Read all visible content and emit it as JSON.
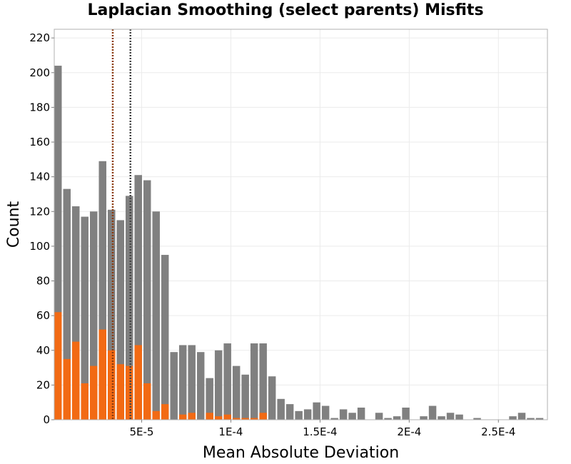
{
  "chart_data": {
    "type": "bar",
    "title": "Laplacian Smoothing (select parents) Misfits",
    "xlabel": "Mean Absolute Deviation",
    "ylabel": "Count",
    "xlim": [
      1e-06,
      0.0002775
    ],
    "ylim": [
      0,
      225
    ],
    "bin_width": 5e-06,
    "grid": true,
    "legend": "none",
    "x_ticks": [
      {
        "value": 5e-05,
        "label": "5E-5"
      },
      {
        "value": 0.0001,
        "label": "1E-4"
      },
      {
        "value": 0.00015,
        "label": "1.5E-4"
      },
      {
        "value": 0.0002,
        "label": "2E-4"
      },
      {
        "value": 0.00025,
        "label": "2.5E-4"
      }
    ],
    "y_ticks": [
      0,
      20,
      40,
      60,
      80,
      100,
      120,
      140,
      160,
      180,
      200,
      220
    ],
    "x_bin_start": [
      1e-06,
      6e-06,
      1.1e-05,
      1.6e-05,
      2.1e-05,
      2.6e-05,
      3.1e-05,
      3.6e-05,
      4.1e-05,
      4.6e-05,
      5.1e-05,
      5.6e-05,
      6.1e-05,
      6.6e-05,
      7.1e-05,
      7.6e-05,
      8.1e-05,
      8.6e-05,
      9.1e-05,
      9.6e-05,
      0.000101,
      0.000106,
      0.000111,
      0.000116,
      0.000121,
      0.000126,
      0.000131,
      0.000136,
      0.000141,
      0.000146,
      0.000151,
      0.000156,
      0.000161,
      0.000166,
      0.000171,
      0.000176,
      0.000181,
      0.000186,
      0.000191,
      0.000196,
      0.000201,
      0.000206,
      0.000211,
      0.000216,
      0.000221,
      0.000226,
      0.000231,
      0.000236,
      0.000241,
      0.000246,
      0.000251,
      0.000256,
      0.000261,
      0.000266,
      0.000271
    ],
    "series": [
      {
        "color": "#808080",
        "values": [
          204,
          133,
          123,
          117,
          120,
          149,
          121,
          115,
          129,
          141,
          138,
          120,
          95,
          39,
          43,
          43,
          39,
          24,
          40,
          44,
          31,
          26,
          44,
          44,
          25,
          12,
          9,
          5,
          6,
          10,
          8,
          1,
          6,
          4,
          7,
          0,
          4,
          1,
          2,
          7,
          0,
          2,
          8,
          2,
          4,
          3,
          0,
          1,
          0,
          0,
          0,
          2,
          4,
          1,
          1
        ]
      },
      {
        "color": "#f26a14",
        "values": [
          62,
          35,
          45,
          21,
          31,
          52,
          40,
          32,
          31,
          43,
          21,
          5,
          9,
          0,
          3,
          4,
          0,
          4,
          2,
          3,
          1,
          1,
          1,
          4,
          0,
          0,
          0,
          0,
          0,
          0,
          0,
          0,
          0,
          0,
          0,
          0,
          0,
          0,
          0,
          0,
          0,
          0,
          0,
          0,
          0,
          0,
          0,
          0,
          0,
          0,
          0,
          0,
          0,
          0,
          0
        ]
      }
    ],
    "reference_lines": [
      {
        "x": 3.38e-05,
        "color": "#8b3a0e",
        "style": "dotted"
      },
      {
        "x": 4.37e-05,
        "color": "#444444",
        "style": "dotted"
      }
    ]
  }
}
